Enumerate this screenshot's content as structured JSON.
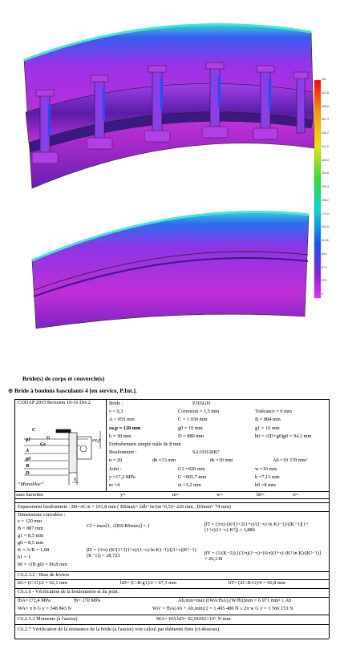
{
  "legend": {
    "labels": [
      "451",
      "423.8",
      "395.6",
      "367.4",
      "339.2",
      "311.0",
      "282.8",
      "254.6",
      "226.4",
      "198.2",
      "170.0",
      "141.8",
      "113.6",
      "85.4",
      "57.2",
      "29.0",
      "0."
    ]
  },
  "document": {
    "title": "Bride(s) de corps et couvercle(s)",
    "subtitle": "Bride à boulons basculants 4 [en service, P.Int.].",
    "code": "CODAP  2015 Revision 10-16 Div.2",
    "drawing_labels": [
      "C",
      "G",
      "Gs",
      "g1",
      "A",
      "g0",
      "B",
      "D",
      "ea,p",
      "h",
      "“Monobloc”"
    ],
    "specs": [
      [
        "Bride :",
        "P265GH"
      ],
      [
        "ν = 0,3",
        "Corrosion = 1,5 mm",
        "Tolérance = 0 mm"
      ],
      [
        "A = 955 mm",
        "C = 1 030 mm",
        "B = 884 mm"
      ],
      [
        "ea,p = 120 mm",
        "g0 = 10 mm",
        "g1 = 10 mm"
      ],
      [
        "h = 30 mm",
        "D = 880 mm",
        "h0 = √(D+g0)g0 = 94,3 mm"
      ],
      [
        "Emboîtement simple mâle de 8 mm"
      ],
      [
        "Boulonnerie :",
        "SA193GRB7"
      ],
      [
        "n = 20",
        "db =33 mm",
        "ds =30 mm",
        "Ab =10 378 mm²"
      ],
      [
        "Joint :",
        "G1 =920 mm",
        "w =16 mm"
      ],
      [
        "y =17,2 MPa",
        "G =905,7 mm",
        "b =7,13 mm"
      ],
      [
        "m =4",
        "ei =3,2 mm",
        "b0 =8 mm"
      ]
    ],
    "bars_row": [
      "sans barrettes",
      "y=",
      "m=",
      "w=",
      "b0=",
      "ri="
    ],
    "spacing": "Espacement boulonnerie : BS=πC/n = 161,8 mm  ( BSmax= 2db+6e/(m+0,5)= 220 mm ,  BSmin= 74 mm)",
    "dims_title": "Dimensions corrodées :",
    "dims": [
      "e = 120 mm",
      "B = 887 mm",
      "g1 = 8,5 mm",
      "g0 = 8,5 mm",
      "K = A/B = 1,08",
      "h1 = 1",
      "h0 = √(B g0) = 86,8 mm"
    ],
    "formulas": [
      "Cf = max[1, √(BS/BSmin)] = 1",
      "βT = (3/π)·(K²(1+2(1+ν)/(1−ν)·ln K)−1)/((K−1)[1+(1+ν)/(1−ν)·K²]) = 1,886",
      "βZ = (3/π)·(K²(1+2(1+ν)/(1−ν)·ln K)−1)/((1+ν)(K²−1)(K−1)) = 28,723",
      "βY = (1/(K−1))·[(3/π)(1−ν)+(6/π)(1+ν)·(K² ln K)/(K²−1)] = 26,138"
    ],
    "sections": [
      [
        "C6.2.3.2 - Bras de leviers"
      ],
      [
        "hG= (C-G)/2 = 62,1 mm",
        "hD= (C-B-g1)/2 = 67,3 mm",
        "hT= (2C-B-G)/4 = 66,8 mm"
      ],
      [
        "C6.1.6 - Vérification de la boulonnerie et du joint :"
      ],
      [
        "fbA=172,4 MPa",
        "fb= 170 MPa",
        "Ab,min=max ((WA/fbA),(W/fb))mm = 6 971 mm² ≤ Ab"
      ],
      [
        "WA= π b G y = 348 843 N",
        "WA' = fbA(Ab + Ab,min)/2 = 1 495 480 N  ≤  2π w G y = 1 566 153 N"
      ],
      [
        "C6.2.5.2 Moments (à l'assise)",
        "MA= WA hD= 92,91062×10⁶ N·mm"
      ],
      [
        "C6.2.7 Vérification de la résistance de la bride (à l'assise) voir calcul par éléments finis (ci-dessous)."
      ]
    ]
  }
}
